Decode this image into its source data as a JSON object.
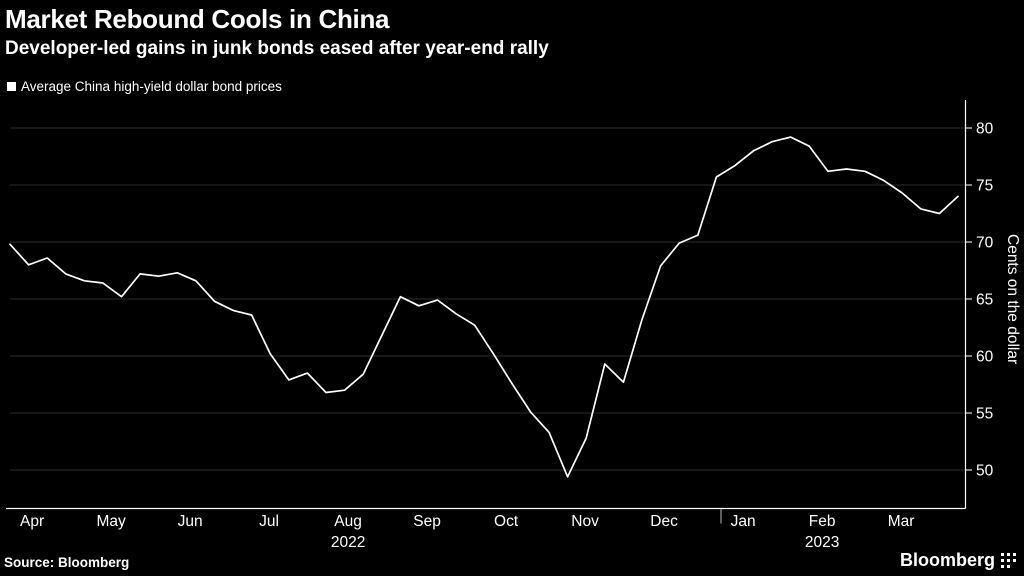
{
  "header": {
    "title": "Market Rebound Cools in China",
    "subtitle": "Developer-led gains in junk bonds eased after year-end rally"
  },
  "legend": {
    "label": "Average China high-yield dollar bond prices"
  },
  "footer": {
    "source": "Source: Bloomberg",
    "brand": "Bloomberg"
  },
  "colors": {
    "background": "#000000",
    "line": "#ffffff",
    "gridline": "#2d2d2d",
    "axis": "#ffffff",
    "text": "#ffffff"
  },
  "chart_data": {
    "type": "line",
    "title": "Market Rebound Cools in China",
    "subtitle": "Developer-led gains in junk bonds eased after year-end rally",
    "ylabel": "Cents on the dollar",
    "ylim": [
      46.5,
      82.5
    ],
    "yticks": [
      50,
      55,
      60,
      65,
      70,
      75,
      80
    ],
    "grid": "horizontal",
    "legend_position": "top-left",
    "x_months": [
      "Apr",
      "May",
      "Jun",
      "Jul",
      "Aug",
      "Sep",
      "Oct",
      "Nov",
      "Dec",
      "Jan",
      "Feb",
      "Mar"
    ],
    "years": [
      {
        "label": "2022",
        "under_month": "Aug"
      },
      {
        "label": "2023",
        "under_month": "Feb"
      }
    ],
    "year_separator_after_month": "Dec",
    "series": [
      {
        "name": "Average China high-yield dollar bond prices",
        "color": "#ffffff",
        "values": [
          69.8,
          68.0,
          68.6,
          67.2,
          66.6,
          66.4,
          65.2,
          67.2,
          67.0,
          67.3,
          66.6,
          64.8,
          64.0,
          63.6,
          60.2,
          57.9,
          58.5,
          56.8,
          57.0,
          58.4,
          61.8,
          65.2,
          64.4,
          64.9,
          63.7,
          62.7,
          60.2,
          57.6,
          55.1,
          53.3,
          49.4,
          52.8,
          59.3,
          57.7,
          63.2,
          67.9,
          69.9,
          70.6,
          75.7,
          76.7,
          78.0,
          78.8,
          79.2,
          78.4,
          76.2,
          76.4,
          76.2,
          75.4,
          74.3,
          72.9,
          72.5,
          74.0
        ]
      }
    ]
  }
}
